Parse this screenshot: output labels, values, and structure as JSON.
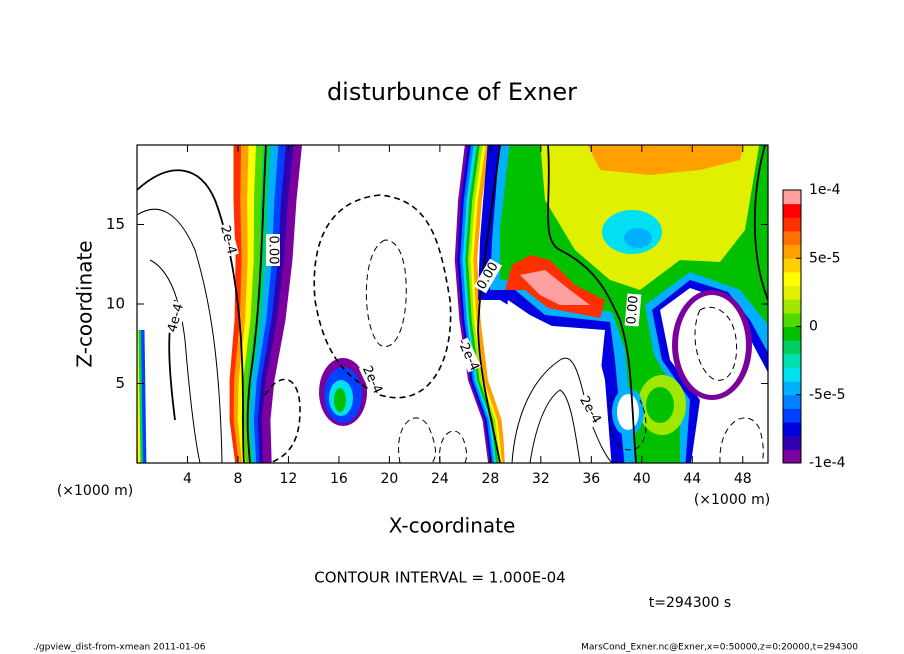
{
  "chart_data": {
    "type": "contour",
    "title": "disturbunce of Exner",
    "xlabel": "X-coordinate",
    "ylabel": "Z-coordinate",
    "xunit": "(×1000 m)",
    "yunit": "(×1000 m)",
    "xlim": [
      0,
      50
    ],
    "ylim": [
      0,
      20
    ],
    "xticks": [
      4,
      8,
      12,
      16,
      20,
      24,
      28,
      32,
      36,
      40,
      44,
      48
    ],
    "yticks": [
      5,
      10,
      15
    ],
    "colorbar": {
      "lim": [
        -0.0001,
        0.0001
      ],
      "ticks": [
        {
          "value": 0.0001,
          "label": "1e-4"
        },
        {
          "value": 5e-05,
          "label": "5e-5"
        },
        0,
        {
          "value": -5e-05,
          "label": "-5e-5"
        },
        {
          "value": -0.0001,
          "label": "-1e-4"
        }
      ],
      "colors": [
        "#7a00a0",
        "#3000b0",
        "#0000e0",
        "#0040ff",
        "#0080ff",
        "#00b0ff",
        "#00e0f0",
        "#00e0b0",
        "#00d060",
        "#00c000",
        "#50d800",
        "#a0e800",
        "#e0f000",
        "#ffff00",
        "#ffd000",
        "#ffa000",
        "#ff7000",
        "#ff3000",
        "#ff0000",
        "#ffa0a0"
      ]
    },
    "contour_labels": [
      "2e-4",
      "0.00",
      "4e-4",
      "2e-4",
      "-2e-4",
      "0.00",
      "0.00",
      "2e-4"
    ],
    "annotation": "CONTOUR INTERVAL = 1.000E-04",
    "time_label": "t=294300 s",
    "footer_left": "./gpview_dist-from-xmean  2011-01-06",
    "footer_right": "MarsCond_Exner.nc@Exner,x=0:50000,z=0:20000,t=294300"
  }
}
